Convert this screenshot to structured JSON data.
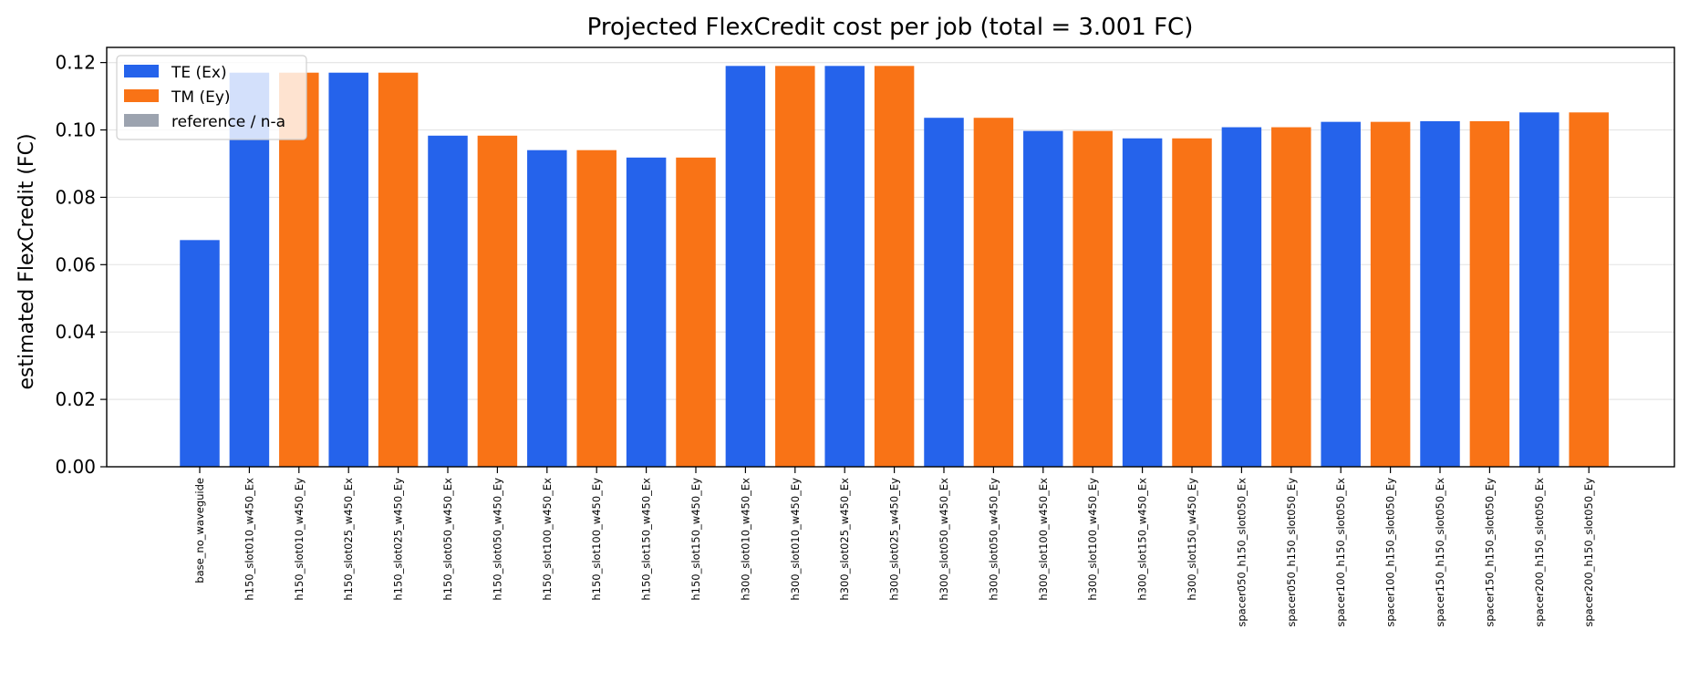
{
  "chart_data": {
    "type": "bar",
    "title": "Projected FlexCredit cost per job (total = 3.001 FC)",
    "xlabel": "",
    "ylabel": "estimated FlexCredit (FC)",
    "ylim": [
      0,
      0.1245
    ],
    "yticks": [
      "0.00",
      "0.02",
      "0.04",
      "0.06",
      "0.08",
      "0.10",
      "0.12"
    ],
    "ytick_values": [
      0,
      0.02,
      0.04,
      0.06,
      0.08,
      0.1,
      0.12
    ],
    "grid": "horizontal",
    "legend_position": "top-left",
    "colors": {
      "te": "#2563eb",
      "tm": "#f97316",
      "ref": "#9ca3af"
    },
    "legend": [
      {
        "label": "TE (Ex)",
        "key": "te"
      },
      {
        "label": "TM (Ey)",
        "key": "tm"
      },
      {
        "label": "reference / n-a",
        "key": "ref"
      }
    ],
    "categories": [
      "base_no_waveguide",
      "h150_slot010_w450_Ex",
      "h150_slot010_w450_Ey",
      "h150_slot025_w450_Ex",
      "h150_slot025_w450_Ey",
      "h150_slot050_w450_Ex",
      "h150_slot050_w450_Ey",
      "h150_slot100_w450_Ex",
      "h150_slot100_w450_Ey",
      "h150_slot150_w450_Ex",
      "h150_slot150_w450_Ey",
      "h300_slot010_w450_Ex",
      "h300_slot010_w450_Ey",
      "h300_slot025_w450_Ex",
      "h300_slot025_w450_Ey",
      "h300_slot050_w450_Ex",
      "h300_slot050_w450_Ey",
      "h300_slot100_w450_Ex",
      "h300_slot100_w450_Ey",
      "h300_slot150_w450_Ex",
      "h300_slot150_w450_Ey",
      "spacer050_h150_slot050_Ex",
      "spacer050_h150_slot050_Ey",
      "spacer100_h150_slot050_Ex",
      "spacer100_h150_slot050_Ey",
      "spacer150_h150_slot050_Ex",
      "spacer150_h150_slot050_Ey",
      "spacer200_h150_slot050_Ex",
      "spacer200_h150_slot050_Ey"
    ],
    "values": [
      0.0673,
      0.117,
      0.117,
      0.117,
      0.117,
      0.0983,
      0.0983,
      0.094,
      0.094,
      0.0918,
      0.0918,
      0.119,
      0.119,
      0.119,
      0.119,
      0.1036,
      0.1036,
      0.0997,
      0.0997,
      0.0975,
      0.0975,
      0.1008,
      0.1008,
      0.1024,
      0.1024,
      0.1026,
      0.1026,
      0.1052,
      0.1052
    ],
    "series_keys": [
      "te",
      "te",
      "tm",
      "te",
      "tm",
      "te",
      "tm",
      "te",
      "tm",
      "te",
      "tm",
      "te",
      "tm",
      "te",
      "tm",
      "te",
      "tm",
      "te",
      "tm",
      "te",
      "tm",
      "te",
      "tm",
      "te",
      "tm",
      "te",
      "tm",
      "te",
      "tm"
    ]
  }
}
